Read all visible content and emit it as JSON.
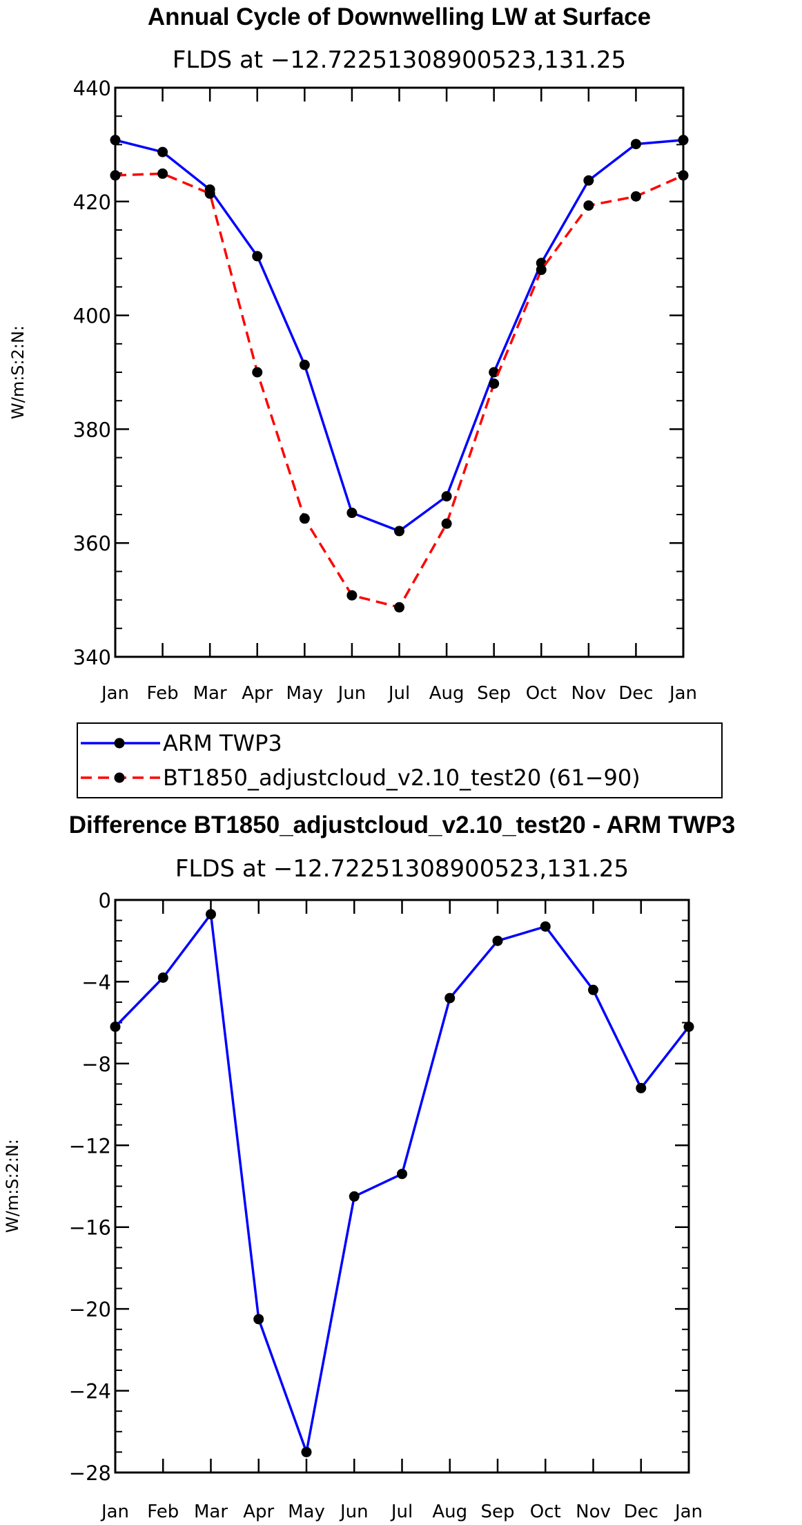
{
  "colors": {
    "obs": "#0000ff",
    "model": "#ff0000",
    "marker": "#000000"
  },
  "chart_data": [
    {
      "type": "line",
      "title": "Annual Cycle of Downwelling LW at Surface",
      "subtitle": "FLDS at −12.72251308900523,131.25",
      "ylabel": "W/m:S:2:N:",
      "xlabel": "",
      "categories": [
        "Jan",
        "Feb",
        "Mar",
        "Apr",
        "May",
        "Jun",
        "Jul",
        "Aug",
        "Sep",
        "Oct",
        "Nov",
        "Dec",
        "Jan"
      ],
      "ylim": [
        340,
        440
      ],
      "yticks": [
        340,
        360,
        380,
        400,
        420,
        440
      ],
      "ytick_labels": [
        "340",
        "360",
        "380",
        "400",
        "420",
        "440"
      ],
      "series": [
        {
          "name": "ARM TWP3",
          "style": "solid",
          "color": "#0000ff",
          "values": [
            430.8,
            428.7,
            422.1,
            410.4,
            391.3,
            365.3,
            362.1,
            368.2,
            390.0,
            409.2,
            423.7,
            430.1,
            430.8
          ]
        },
        {
          "name": "BT1850_adjustcloud_v2.10_test20 (61−90)",
          "style": "dashed",
          "color": "#ff0000",
          "values": [
            424.6,
            424.9,
            421.4,
            390.0,
            364.3,
            350.8,
            348.7,
            363.4,
            388.0,
            408.0,
            419.3,
            420.9,
            424.6
          ]
        }
      ],
      "legend": {
        "position": "below",
        "entries": [
          "ARM TWP3",
          "BT1850_adjustcloud_v2.10_test20 (61−90)"
        ]
      }
    },
    {
      "type": "line",
      "title": "Difference BT1850_adjustcloud_v2.10_test20 - ARM TWP3",
      "subtitle": "FLDS at −12.72251308900523,131.25",
      "ylabel": "W/m:S:2:N:",
      "xlabel": "",
      "categories": [
        "Jan",
        "Feb",
        "Mar",
        "Apr",
        "May",
        "Jun",
        "Jul",
        "Aug",
        "Sep",
        "Oct",
        "Nov",
        "Dec",
        "Jan"
      ],
      "ylim": [
        -28,
        0
      ],
      "yticks": [
        -28,
        -24,
        -20,
        -16,
        -12,
        -8,
        -4,
        0
      ],
      "ytick_labels": [
        "−28",
        "−24",
        "−20",
        "−16",
        "−12",
        "−8",
        "−4",
        "0"
      ],
      "series": [
        {
          "name": "difference",
          "style": "solid",
          "color": "#0000ff",
          "values": [
            -6.2,
            -3.8,
            -0.7,
            -20.5,
            -27.0,
            -14.5,
            -13.4,
            -4.8,
            -2.0,
            -1.3,
            -4.4,
            -9.2,
            -6.2
          ]
        }
      ]
    }
  ]
}
